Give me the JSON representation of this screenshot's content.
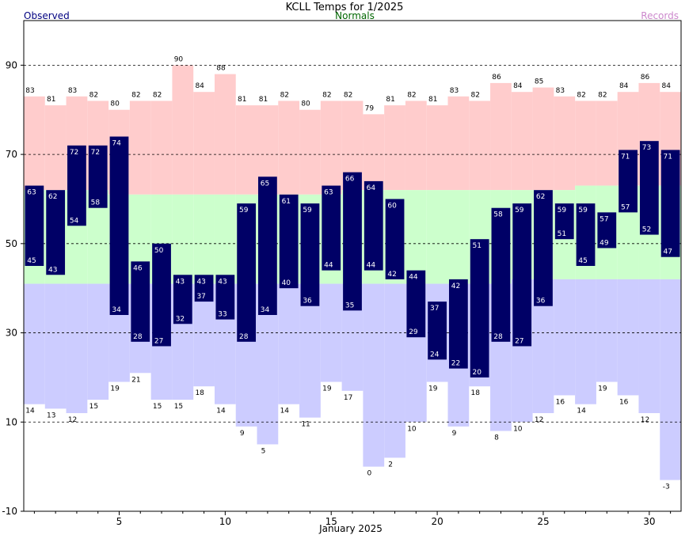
{
  "chart_data": {
    "type": "bar",
    "title": "KCLL Temps for 1/2025",
    "legend": [
      "Observed",
      "Normals",
      "Records"
    ],
    "xlabel": "January 2025",
    "ylabel": "",
    "ylim": [
      -10,
      100
    ],
    "xlim": [
      0.5,
      31.5
    ],
    "yticks": [
      -10,
      10,
      30,
      50,
      70,
      90
    ],
    "xticks": [
      5,
      10,
      15,
      20,
      25,
      30
    ],
    "grid": "horizontal dashed",
    "colors": {
      "observed": "#000066",
      "normals": "#ccffcc",
      "record_high": "#ffcccc",
      "record_low": "#ccccff",
      "title": "#000000",
      "observed_legend": "#000080",
      "normals_legend": "#006600",
      "records_legend": "#cc88cc"
    },
    "days": [
      1,
      2,
      3,
      4,
      5,
      6,
      7,
      8,
      9,
      10,
      11,
      12,
      13,
      14,
      15,
      16,
      17,
      18,
      19,
      20,
      21,
      22,
      23,
      24,
      25,
      26,
      27,
      28,
      29,
      30,
      31
    ],
    "observed_high": [
      63,
      62,
      72,
      72,
      74,
      46,
      50,
      43,
      43,
      43,
      59,
      65,
      61,
      59,
      63,
      66,
      64,
      60,
      44,
      37,
      42,
      51,
      58,
      59,
      62,
      59,
      59,
      57,
      71,
      73,
      71
    ],
    "observed_low": [
      45,
      43,
      54,
      58,
      34,
      28,
      27,
      32,
      37,
      33,
      28,
      34,
      40,
      36,
      44,
      35,
      44,
      42,
      29,
      24,
      22,
      20,
      28,
      27,
      36,
      51,
      45,
      49,
      57,
      52,
      47
    ],
    "record_high": [
      83,
      81,
      83,
      82,
      80,
      82,
      82,
      90,
      84,
      88,
      81,
      81,
      82,
      80,
      82,
      82,
      79,
      81,
      82,
      81,
      83,
      82,
      86,
      84,
      85,
      83,
      82,
      82,
      84,
      86,
      84
    ],
    "record_low": [
      14,
      13,
      12,
      15,
      19,
      21,
      15,
      15,
      18,
      14,
      9,
      5,
      14,
      11,
      19,
      17,
      0,
      2,
      10,
      19,
      9,
      18,
      8,
      10,
      12,
      16,
      14,
      19,
      16,
      12,
      -3
    ],
    "normal_high": [
      62,
      62,
      62,
      62,
      61,
      61,
      61,
      61,
      61,
      61,
      61,
      61,
      61,
      61,
      61,
      62,
      62,
      62,
      62,
      62,
      62,
      62,
      62,
      62,
      62,
      62,
      63,
      63,
      63,
      63,
      63
    ],
    "normal_low": [
      41,
      41,
      41,
      41,
      41,
      41,
      41,
      41,
      41,
      41,
      41,
      41,
      41,
      41,
      41,
      41,
      41,
      41,
      41,
      41,
      41,
      41,
      41,
      42,
      42,
      42,
      42,
      42,
      42,
      42,
      42
    ]
  }
}
